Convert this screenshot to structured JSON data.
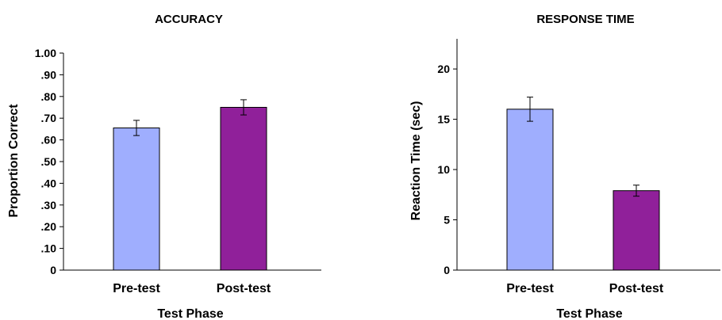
{
  "chart_data": [
    {
      "type": "bar",
      "title": "ACCURACY",
      "xlabel": "Test Phase",
      "ylabel": "Proportion Correct",
      "categories": [
        "Pre-test",
        "Post-test"
      ],
      "values": [
        0.655,
        0.75
      ],
      "error": [
        0.035,
        0.035
      ],
      "bar_colors": [
        "#9faefe",
        "#90209a"
      ],
      "ylim": [
        0,
        1.0
      ],
      "yticks": [
        0,
        0.1,
        0.2,
        0.3,
        0.4,
        0.5,
        0.6,
        0.7,
        0.8,
        0.9,
        1.0
      ],
      "ytick_labels": [
        "0",
        ".10",
        ".20",
        ".30",
        ".40",
        ".50",
        ".60",
        ".70",
        ".80",
        ".90",
        "1.00"
      ],
      "grid": false,
      "legend": false
    },
    {
      "type": "bar",
      "title": "RESPONSE TIME",
      "xlabel": "Test Phase",
      "ylabel": "Reaction Time (sec)",
      "categories": [
        "Pre-test",
        "Post-test"
      ],
      "values": [
        16.0,
        7.9
      ],
      "error": [
        1.2,
        0.55
      ],
      "bar_colors": [
        "#9faefe",
        "#90209a"
      ],
      "ylim": [
        0,
        23
      ],
      "yticks": [
        0,
        5,
        10,
        15,
        20
      ],
      "ytick_labels": [
        "0",
        "5",
        "10",
        "15",
        "20"
      ],
      "grid": false,
      "legend": false
    }
  ]
}
